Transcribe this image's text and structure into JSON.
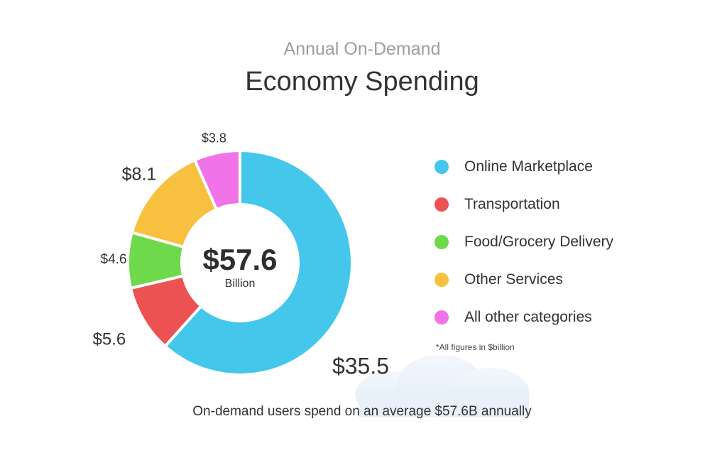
{
  "chart_data": {
    "type": "pie",
    "title": "Economy Spending",
    "subtitle": "Annual On-Demand",
    "center_value": "$57.6",
    "center_unit": "Billion",
    "slices": [
      {
        "label": "Online Marketplace",
        "value": 35.5,
        "display": "$35.5",
        "color": "#45c7ec"
      },
      {
        "label": "Transportation",
        "value": 5.6,
        "display": "$5.6",
        "color": "#ed5252"
      },
      {
        "label": "Food/Grocery Delivery",
        "value": 4.6,
        "display": "$4.6",
        "color": "#6ed94a"
      },
      {
        "label": "Other Services",
        "value": 8.1,
        "display": "$8.1",
        "color": "#f7c13f"
      },
      {
        "label": "All other categories",
        "value": 3.8,
        "display": "$3.8",
        "color": "#f173e8"
      }
    ],
    "footnote": "*All figures in $billion",
    "caption": "On-demand users spend on an average $57.6B annually",
    "legend_position": "right"
  }
}
